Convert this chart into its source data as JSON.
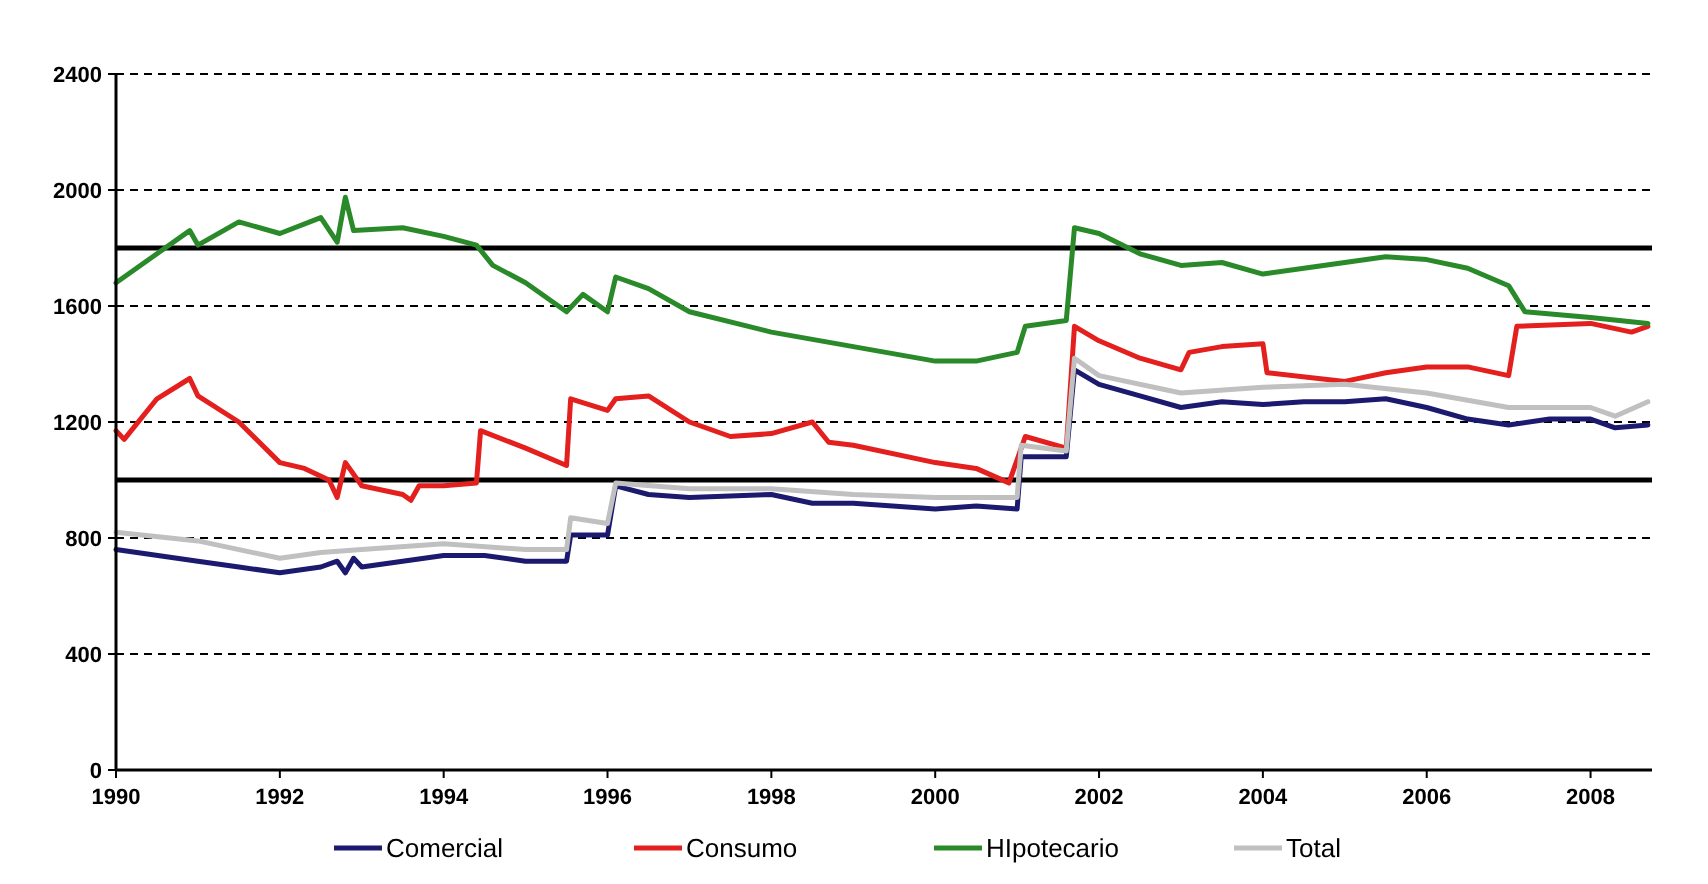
{
  "chart_data": {
    "type": "line",
    "xlim": [
      1990,
      2008.75
    ],
    "xticks": [
      1990,
      1992,
      1994,
      1996,
      1998,
      2000,
      2002,
      2004,
      2006,
      2008
    ],
    "ylim": [
      0,
      2400
    ],
    "yticks": [
      0,
      400,
      800,
      1200,
      1600,
      2000,
      2400
    ],
    "grid": "y",
    "legend": "bottom",
    "marker": "none",
    "line_style": "solid",
    "ref_lines": [
      {
        "axis": "y",
        "value": 1800,
        "color": "#000000"
      },
      {
        "axis": "y",
        "value": 1000,
        "color": "#000000"
      }
    ],
    "series": [
      {
        "name": "Comercial",
        "color": "#1c1a6e",
        "x": [
          1990,
          1991,
          1991.5,
          1992,
          1992.5,
          1992.7,
          1992.8,
          1992.9,
          1993,
          1993.5,
          1994,
          1994.5,
          1995,
          1995.5,
          1995.55,
          1996,
          1996.1,
          1996.5,
          1997,
          1998,
          1998.5,
          1999,
          2000,
          2000.5,
          2001,
          2001.05,
          2001.6,
          2001.7,
          2002,
          2002.5,
          2003,
          2003.5,
          2004,
          2004.5,
          2005,
          2005.5,
          2006,
          2006.5,
          2007,
          2007.5,
          2008,
          2008.3,
          2008.7
        ],
        "values": [
          760,
          720,
          700,
          680,
          700,
          720,
          680,
          730,
          700,
          720,
          740,
          740,
          720,
          720,
          810,
          810,
          980,
          950,
          940,
          950,
          920,
          920,
          900,
          910,
          900,
          1080,
          1080,
          1380,
          1330,
          1290,
          1250,
          1270,
          1260,
          1270,
          1270,
          1280,
          1250,
          1210,
          1190,
          1210,
          1210,
          1180,
          1190
        ]
      },
      {
        "name": "Consumo",
        "color": "#e3201e",
        "x": [
          1990,
          1990.1,
          1990.5,
          1990.9,
          1991,
          1991.5,
          1992,
          1992.3,
          1992.6,
          1992.7,
          1992.8,
          1993,
          1993.5,
          1993.6,
          1993.7,
          1994,
          1994.4,
          1994.45,
          1995,
          1995.5,
          1995.55,
          1996,
          1996.1,
          1996.5,
          1997,
          1997.5,
          1998,
          1998.5,
          1998.7,
          1999,
          2000,
          2000.5,
          2000.9,
          2001.1,
          2001.6,
          2001.7,
          2002,
          2002.5,
          2003,
          2003.1,
          2003.5,
          2004,
          2004.05,
          2005,
          2005.5,
          2006,
          2006.5,
          2007,
          2007.1,
          2008,
          2008.5,
          2008.7
        ],
        "values": [
          1170,
          1140,
          1280,
          1350,
          1290,
          1200,
          1060,
          1040,
          1000,
          940,
          1060,
          980,
          950,
          930,
          980,
          980,
          990,
          1170,
          1110,
          1050,
          1280,
          1240,
          1280,
          1290,
          1200,
          1150,
          1160,
          1200,
          1130,
          1120,
          1060,
          1040,
          990,
          1150,
          1110,
          1530,
          1480,
          1420,
          1380,
          1440,
          1460,
          1470,
          1370,
          1340,
          1370,
          1390,
          1390,
          1360,
          1530,
          1540,
          1510,
          1530
        ]
      },
      {
        "name": "HIpotecario",
        "color": "#2a8a2a",
        "x": [
          1990,
          1990.5,
          1990.9,
          1991,
          1991.5,
          1992,
          1992.5,
          1992.7,
          1992.8,
          1992.9,
          1993.5,
          1994,
          1994.4,
          1994.6,
          1995,
          1995.5,
          1995.7,
          1996,
          1996.1,
          1996.5,
          1997,
          1998,
          1999,
          2000,
          2000.5,
          2001,
          2001.1,
          2001.6,
          2001.7,
          2002,
          2002.5,
          2003,
          2003.5,
          2004,
          2004.5,
          2005,
          2005.5,
          2006,
          2006.5,
          2007,
          2007.2,
          2008,
          2008.7
        ],
        "values": [
          1680,
          1780,
          1860,
          1810,
          1890,
          1850,
          1905,
          1820,
          1975,
          1860,
          1870,
          1840,
          1810,
          1740,
          1680,
          1580,
          1640,
          1580,
          1700,
          1660,
          1580,
          1510,
          1460,
          1410,
          1410,
          1440,
          1530,
          1550,
          1870,
          1850,
          1780,
          1740,
          1750,
          1710,
          1730,
          1750,
          1770,
          1760,
          1730,
          1670,
          1580,
          1560,
          1540
        ]
      },
      {
        "name": "Total",
        "color": "#c0c0c0",
        "x": [
          1990,
          1991,
          1992,
          1992.5,
          1993,
          1994,
          1995,
          1995.5,
          1995.55,
          1996,
          1996.1,
          1997,
          1998,
          1999,
          2000,
          2001,
          2001.05,
          2001.6,
          2001.7,
          2002,
          2003,
          2004,
          2005,
          2006,
          2007,
          2008,
          2008.3,
          2008.7
        ],
        "values": [
          820,
          790,
          730,
          750,
          760,
          780,
          760,
          760,
          870,
          850,
          990,
          970,
          970,
          950,
          940,
          940,
          1120,
          1100,
          1420,
          1360,
          1300,
          1320,
          1330,
          1300,
          1250,
          1250,
          1220,
          1270
        ]
      }
    ]
  }
}
